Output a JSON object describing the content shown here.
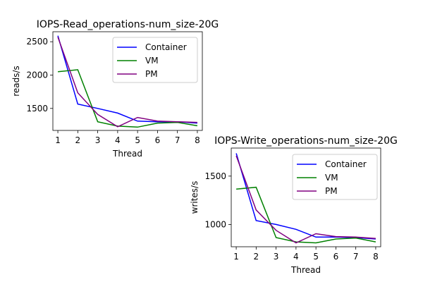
{
  "chart_data": [
    {
      "type": "line",
      "title": "IOPS-Read_operations-num_size-20G",
      "xlabel": "Thread",
      "ylabel": "reads/s",
      "x": [
        1,
        2,
        3,
        4,
        5,
        6,
        7,
        8
      ],
      "xlim": [
        0.75,
        8.25
      ],
      "ylim": [
        1170,
        2650
      ],
      "yticks": [
        1500,
        2000,
        2500
      ],
      "legend_loc": "upper right",
      "series": [
        {
          "name": "Container",
          "color": "#0000ff",
          "values": [
            2590,
            1565,
            1500,
            1430,
            1310,
            1300,
            1300,
            1280
          ]
        },
        {
          "name": "VM",
          "color": "#008000",
          "values": [
            2050,
            2080,
            1300,
            1235,
            1220,
            1280,
            1290,
            1240
          ]
        },
        {
          "name": "PM",
          "color": "#800080",
          "values": [
            2570,
            1735,
            1410,
            1225,
            1365,
            1310,
            1300,
            1290
          ]
        }
      ]
    },
    {
      "type": "line",
      "title": "IOPS-Write_operations-num_size-20G",
      "xlabel": "Thread",
      "ylabel": "writes/s",
      "x": [
        1,
        2,
        3,
        4,
        5,
        6,
        7,
        8
      ],
      "xlim": [
        0.75,
        8.25
      ],
      "ylim": [
        770,
        1790
      ],
      "yticks": [
        1000,
        1500
      ],
      "legend_loc": "upper right",
      "series": [
        {
          "name": "Container",
          "color": "#0000ff",
          "values": [
            1735,
            1040,
            1000,
            950,
            870,
            870,
            865,
            850
          ]
        },
        {
          "name": "VM",
          "color": "#008000",
          "values": [
            1365,
            1385,
            865,
            820,
            810,
            850,
            860,
            820
          ]
        },
        {
          "name": "PM",
          "color": "#800080",
          "values": [
            1710,
            1150,
            940,
            810,
            905,
            875,
            870,
            855
          ]
        }
      ]
    }
  ]
}
